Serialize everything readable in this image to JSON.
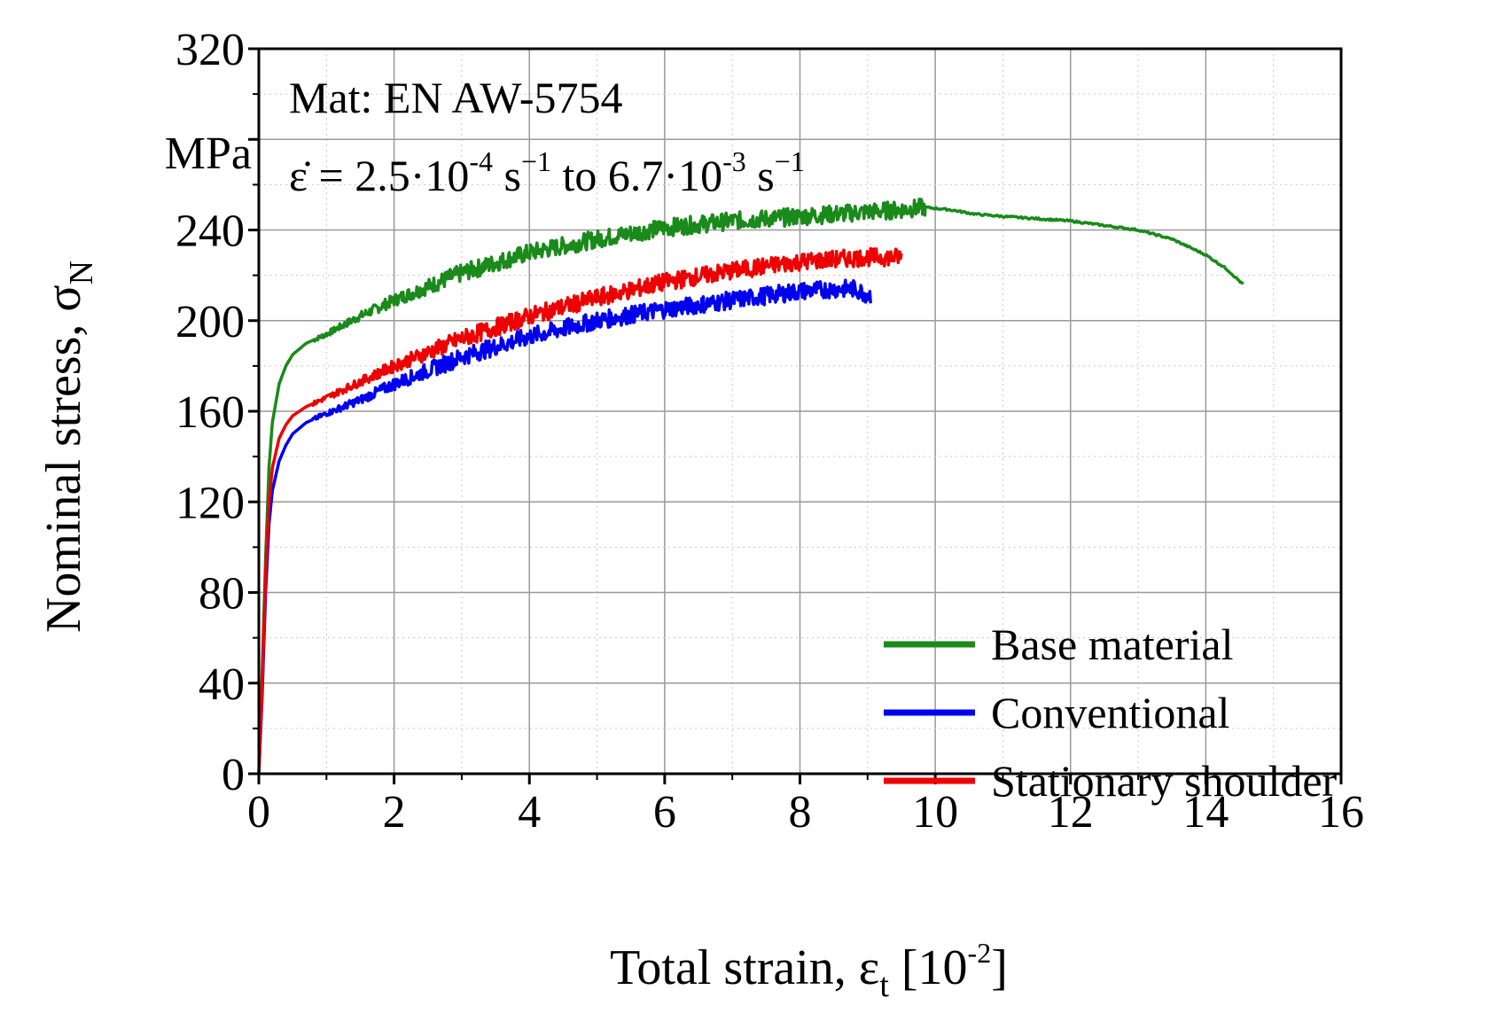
{
  "chart_data": {
    "type": "line",
    "title": "",
    "xlabel": {
      "main": "Total strain, ε",
      "sub": "t",
      "bracket_open": " [10",
      "sup": "-2",
      "bracket_close": "]"
    },
    "ylabel": {
      "main": "Nominal stress, σ",
      "sub": "N"
    },
    "y_unit": "MPa",
    "xlim": [
      0,
      16
    ],
    "ylim": [
      0,
      320
    ],
    "x_ticks": [
      0,
      2,
      4,
      6,
      8,
      10,
      12,
      14,
      16
    ],
    "x_tick_labels": [
      "0",
      "2",
      "4",
      "6",
      "8",
      "10",
      "12",
      "14",
      "16"
    ],
    "y_ticks": [
      0,
      40,
      80,
      120,
      160,
      200,
      240,
      280,
      320
    ],
    "y_tick_labels": [
      "0",
      "40",
      "80",
      "120",
      "160",
      "200",
      "240",
      "",
      "320"
    ],
    "grid": true,
    "annotations": {
      "material": "Mat: EN AW-5754",
      "rate": {
        "p1": "ε̇ = 2.5·10",
        "s1": "-4",
        "p2": " s",
        "s2": "−1",
        "p3": " to 6.7·10",
        "s3": "-3",
        "p4": " s",
        "s4": "−1"
      }
    },
    "legend_position": "bottom-right",
    "series": [
      {
        "name": "Base material",
        "color": "#1a8a1a",
        "noise": 3.0,
        "x": [
          0,
          0.05,
          0.1,
          0.15,
          0.2,
          0.3,
          0.4,
          0.5,
          0.7,
          1.0,
          1.5,
          2.0,
          3.0,
          4.0,
          5.0,
          6.0,
          7.0,
          8.0,
          9.0,
          9.5,
          9.85
        ],
        "y": [
          0,
          45,
          95,
          135,
          155,
          172,
          180,
          185,
          190,
          194,
          202,
          209,
          221,
          230,
          236,
          241,
          244,
          246,
          248,
          249,
          250
        ],
        "tail_x": [
          9.85,
          10.2,
          10.6,
          11.0,
          11.5,
          12.0,
          12.5,
          13.0,
          13.5,
          14.0,
          14.3,
          14.55
        ],
        "tail_y": [
          250,
          249,
          247,
          246,
          245,
          244,
          242,
          240,
          236,
          229,
          223,
          216
        ]
      },
      {
        "name": "Conventional",
        "color": "#0000ee",
        "noise": 3.0,
        "x": [
          0,
          0.05,
          0.1,
          0.15,
          0.2,
          0.3,
          0.4,
          0.5,
          0.7,
          1.0,
          1.5,
          2.0,
          3.0,
          4.0,
          5.0,
          6.0,
          7.0,
          8.0,
          8.5,
          8.8,
          9.05
        ],
        "y": [
          0,
          35,
          80,
          110,
          125,
          138,
          145,
          150,
          155,
          159,
          165,
          172,
          184,
          193,
          200,
          205,
          209,
          213,
          214,
          214,
          211
        ],
        "tail_x": [],
        "tail_y": []
      },
      {
        "name": "Stationary shoulder",
        "color": "#ee0000",
        "noise": 3.0,
        "x": [
          0,
          0.05,
          0.1,
          0.15,
          0.2,
          0.3,
          0.4,
          0.5,
          0.7,
          1.0,
          1.5,
          2.0,
          3.0,
          4.0,
          5.0,
          6.0,
          7.0,
          8.0,
          9.0,
          9.5
        ],
        "y": [
          0,
          40,
          88,
          120,
          135,
          148,
          154,
          158,
          162,
          166,
          173,
          180,
          192,
          202,
          210,
          217,
          222,
          226,
          228,
          228
        ],
        "tail_x": [],
        "tail_y": []
      }
    ]
  }
}
